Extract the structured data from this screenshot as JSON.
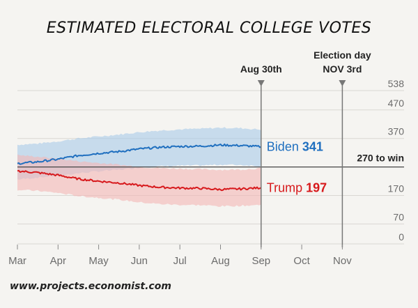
{
  "chart_data": {
    "type": "line",
    "title": "ESTIMATED ELECTORAL COLLEGE VOTES",
    "source": "www.projects.economist.com",
    "x_ticks": [
      "Mar",
      "Apr",
      "May",
      "Jun",
      "Jul",
      "Aug",
      "Sep",
      "Oct",
      "Nov"
    ],
    "y_ticks": [
      0,
      70,
      170,
      370,
      470,
      538
    ],
    "ylim": [
      0,
      538
    ],
    "threshold": {
      "value": 270,
      "label": "270 to win"
    },
    "markers": [
      {
        "month_index": 6.0,
        "lines": [
          "Aug 30th"
        ]
      },
      {
        "month_index": 8.0,
        "lines": [
          "Election day",
          "NOV 3rd"
        ]
      }
    ],
    "series": [
      {
        "name": "Biden",
        "final_value": "341",
        "color": "#1f6fbf",
        "band_color": "#a9c9ea",
        "x": [
          0,
          0.5,
          1,
          1.5,
          2,
          2.5,
          3,
          3.5,
          4,
          4.5,
          5,
          5.5,
          6
        ],
        "values": [
          282,
          288,
          297,
          310,
          318,
          324,
          333,
          339,
          342,
          343,
          347,
          345,
          341
        ],
        "lower": [
          226,
          233,
          240,
          248,
          255,
          260,
          268,
          272,
          274,
          275,
          278,
          277,
          273
        ],
        "upper": [
          348,
          352,
          360,
          370,
          377,
          384,
          392,
          398,
          402,
          404,
          408,
          406,
          401
        ]
      },
      {
        "name": "Trump",
        "final_value": "197",
        "color": "#d7191c",
        "band_color": "#f4b5b5",
        "x": [
          0,
          0.5,
          1,
          1.5,
          2,
          2.5,
          3,
          3.5,
          4,
          4.5,
          5,
          5.5,
          6
        ],
        "values": [
          256,
          250,
          241,
          228,
          220,
          214,
          205,
          199,
          196,
          195,
          191,
          193,
          197
        ],
        "lower": [
          190,
          186,
          179,
          168,
          162,
          155,
          146,
          140,
          137,
          136,
          132,
          134,
          137
        ],
        "upper": [
          312,
          306,
          299,
          290,
          284,
          278,
          270,
          266,
          264,
          262,
          260,
          261,
          265
        ]
      }
    ]
  }
}
